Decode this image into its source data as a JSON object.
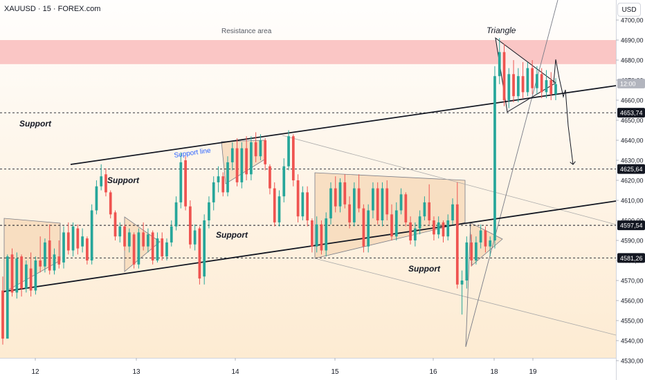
{
  "header": {
    "symbol": "XAUUSD · 15 · FOREX.com",
    "currency": "USD"
  },
  "colors": {
    "bull": "#26a69a",
    "bear": "#ef5350",
    "resistance_band": "#f8b4b4",
    "pattern_fill": "#f5d6b4"
  },
  "chart_data": {
    "type": "candlestick",
    "title": "XAUUSD · 15 · FOREX.com",
    "xlabel": "",
    "ylabel": "",
    "ylim": [
      4528,
      4706
    ],
    "x_ticks": [
      "12",
      "13",
      "14",
      "15",
      "16",
      "18",
      "19"
    ],
    "y_ticks": [
      4530,
      4540,
      4550,
      4560,
      4570,
      4580,
      4590,
      4600,
      4610,
      4620,
      4630,
      4640,
      4650,
      4660,
      4670,
      4680,
      4690,
      4700
    ],
    "y_tick_labels": [
      "4530,00",
      "4540,00",
      "4550,00",
      "4560,00",
      "4570,00",
      "4580,00",
      "4590,00",
      "4600,00",
      "4610,00",
      "4620,00",
      "4630,00",
      "4640,00",
      "4650,00",
      "4660,00",
      "4670,00",
      "4680,00",
      "4690,00",
      "4700,00"
    ],
    "price_tags": [
      {
        "value": 4653.74,
        "label": "4653,74",
        "dark": true
      },
      {
        "value": 4625.64,
        "label": "4625,64",
        "dark": true
      },
      {
        "value": 4597.54,
        "label": "4597,54",
        "dark": true
      },
      {
        "value": 4581.26,
        "label": "4581,26",
        "dark": true
      },
      {
        "value": 4668.3,
        "label": "12:00",
        "dark": false
      }
    ],
    "resistance_area": {
      "label": "Resistance area",
      "from": 4678,
      "to": 4690
    },
    "horizontal_levels": [
      4653.74,
      4625.64,
      4597.54,
      4581.26
    ],
    "annotations": [
      {
        "text": "Support",
        "style": "bold-italic"
      },
      {
        "text": "Support",
        "style": "bold-italic"
      },
      {
        "text": "Support",
        "style": "bold-italic"
      },
      {
        "text": "Support",
        "style": "bold-italic"
      },
      {
        "text": "Support line",
        "style": "plain-blue"
      },
      {
        "text": "Triangle",
        "style": "italic"
      },
      {
        "text": "Resistance area",
        "style": "plain"
      }
    ],
    "candles": [
      [
        4565,
        4572,
        4538,
        4541
      ],
      [
        4541,
        4583,
        4541,
        4582
      ],
      [
        4583,
        4586,
        4562,
        4564
      ],
      [
        4564,
        4584,
        4561,
        4581
      ],
      [
        4582,
        4583,
        4562,
        4566
      ],
      [
        4566,
        4580,
        4564,
        4578
      ],
      [
        4576,
        4584,
        4562,
        4565
      ],
      [
        4565,
        4582,
        4563,
        4580
      ],
      [
        4580,
        4592,
        4574,
        4577
      ],
      [
        4577,
        4591,
        4574,
        4589
      ],
      [
        4590,
        4598,
        4573,
        4575
      ],
      [
        4575,
        4586,
        4573,
        4583
      ],
      [
        4582,
        4590,
        4576,
        4578
      ],
      [
        4579,
        4597,
        4576,
        4594
      ],
      [
        4594,
        4599,
        4583,
        4585
      ],
      [
        4585,
        4599,
        4582,
        4597
      ],
      [
        4596,
        4598,
        4583,
        4586
      ],
      [
        4587,
        4596,
        4584,
        4592
      ],
      [
        4591,
        4592,
        4578,
        4580
      ],
      [
        4580,
        4608,
        4578,
        4605
      ],
      [
        4605,
        4620,
        4603,
        4617
      ],
      [
        4617,
        4628,
        4615,
        4622
      ],
      [
        4623,
        4626,
        4612,
        4614
      ],
      [
        4614,
        4615,
        4601,
        4603
      ],
      [
        4604,
        4605,
        4590,
        4592
      ],
      [
        4592,
        4599,
        4589,
        4597
      ],
      [
        4597,
        4598,
        4585,
        4587
      ],
      [
        4587,
        4596,
        4584,
        4594
      ],
      [
        4593,
        4594,
        4576,
        4578
      ],
      [
        4578,
        4596,
        4576,
        4594
      ],
      [
        4594,
        4599,
        4585,
        4587
      ],
      [
        4587,
        4596,
        4584,
        4593
      ],
      [
        4594,
        4595,
        4578,
        4580
      ],
      [
        4580,
        4594,
        4579,
        4591
      ],
      [
        4591,
        4594,
        4580,
        4582
      ],
      [
        4582,
        4591,
        4580,
        4589
      ],
      [
        4589,
        4600,
        4587,
        4597
      ],
      [
        4597,
        4612,
        4595,
        4609
      ],
      [
        4609,
        4634,
        4606,
        4629
      ],
      [
        4630,
        4632,
        4605,
        4607
      ],
      [
        4607,
        4610,
        4586,
        4588
      ],
      [
        4588,
        4598,
        4585,
        4595
      ],
      [
        4596,
        4597,
        4568,
        4571
      ],
      [
        4572,
        4603,
        4568,
        4600
      ],
      [
        4600,
        4612,
        4596,
        4609
      ],
      [
        4609,
        4622,
        4605,
        4619
      ],
      [
        4619,
        4627,
        4614,
        4622
      ],
      [
        4622,
        4624,
        4612,
        4614
      ],
      [
        4614,
        4632,
        4612,
        4629
      ],
      [
        4629,
        4639,
        4625,
        4636
      ],
      [
        4636,
        4641,
        4617,
        4619
      ],
      [
        4619,
        4639,
        4616,
        4636
      ],
      [
        4636,
        4642,
        4620,
        4623
      ],
      [
        4623,
        4642,
        4620,
        4639
      ],
      [
        4639,
        4644,
        4629,
        4632
      ],
      [
        4632,
        4643,
        4630,
        4640
      ],
      [
        4640,
        4641,
        4625,
        4628
      ],
      [
        4627,
        4628,
        4613,
        4616
      ],
      [
        4616,
        4619,
        4597,
        4599
      ],
      [
        4599,
        4615,
        4597,
        4612
      ],
      [
        4612,
        4631,
        4609,
        4627
      ],
      [
        4627,
        4645,
        4625,
        4642
      ],
      [
        4642,
        4643,
        4617,
        4620
      ],
      [
        4620,
        4623,
        4599,
        4602
      ],
      [
        4602,
        4617,
        4600,
        4614
      ],
      [
        4614,
        4617,
        4597,
        4600
      ],
      [
        4600,
        4601,
        4584,
        4587
      ],
      [
        4587,
        4602,
        4584,
        4598
      ],
      [
        4598,
        4600,
        4583,
        4585
      ],
      [
        4585,
        4604,
        4582,
        4601
      ],
      [
        4601,
        4619,
        4598,
        4616
      ],
      [
        4616,
        4622,
        4604,
        4607
      ],
      [
        4607,
        4621,
        4604,
        4619
      ],
      [
        4619,
        4623,
        4606,
        4608
      ],
      [
        4608,
        4612,
        4596,
        4599
      ],
      [
        4599,
        4619,
        4597,
        4616
      ],
      [
        4616,
        4623,
        4604,
        4606
      ],
      [
        4606,
        4608,
        4584,
        4587
      ],
      [
        4587,
        4608,
        4584,
        4605
      ],
      [
        4605,
        4619,
        4601,
        4616
      ],
      [
        4616,
        4619,
        4598,
        4600
      ],
      [
        4600,
        4619,
        4597,
        4616
      ],
      [
        4616,
        4620,
        4600,
        4603
      ],
      [
        4603,
        4608,
        4590,
        4592
      ],
      [
        4592,
        4609,
        4590,
        4605
      ],
      [
        4605,
        4616,
        4603,
        4613
      ],
      [
        4613,
        4614,
        4597,
        4599
      ],
      [
        4599,
        4602,
        4588,
        4590
      ],
      [
        4590,
        4599,
        4587,
        4596
      ],
      [
        4596,
        4605,
        4593,
        4602
      ],
      [
        4602,
        4612,
        4600,
        4609
      ],
      [
        4609,
        4618,
        4598,
        4600
      ],
      [
        4600,
        4602,
        4590,
        4593
      ],
      [
        4593,
        4602,
        4591,
        4599
      ],
      [
        4599,
        4600,
        4589,
        4592
      ],
      [
        4592,
        4603,
        4590,
        4600
      ],
      [
        4600,
        4611,
        4598,
        4608
      ],
      [
        4608,
        4619,
        4566,
        4568
      ],
      [
        4568,
        4575,
        4553,
        4570
      ],
      [
        4570,
        4592,
        4566,
        4589
      ],
      [
        4589,
        4593,
        4577,
        4580
      ],
      [
        4580,
        4592,
        4578,
        4589
      ],
      [
        4589,
        4598,
        4586,
        4595
      ],
      [
        4595,
        4597,
        4584,
        4587
      ],
      [
        4587,
        4592,
        4582,
        4590
      ],
      [
        4590,
        4677,
        4586,
        4672
      ],
      [
        4672,
        4691,
        4668,
        4684
      ],
      [
        4684,
        4688,
        4657,
        4660
      ],
      [
        4660,
        4676,
        4656,
        4673
      ],
      [
        4673,
        4680,
        4659,
        4662
      ],
      [
        4662,
        4676,
        4659,
        4672
      ],
      [
        4672,
        4679,
        4661,
        4664
      ],
      [
        4664,
        4679,
        4662,
        4676
      ],
      [
        4676,
        4680,
        4663,
        4666
      ],
      [
        4666,
        4677,
        4663,
        4673
      ],
      [
        4673,
        4676,
        4661,
        4664
      ],
      [
        4664,
        4675,
        4661,
        4670
      ],
      [
        4670,
        4674,
        4660,
        4663
      ],
      [
        4663,
        4671,
        4660,
        4668
      ]
    ]
  }
}
